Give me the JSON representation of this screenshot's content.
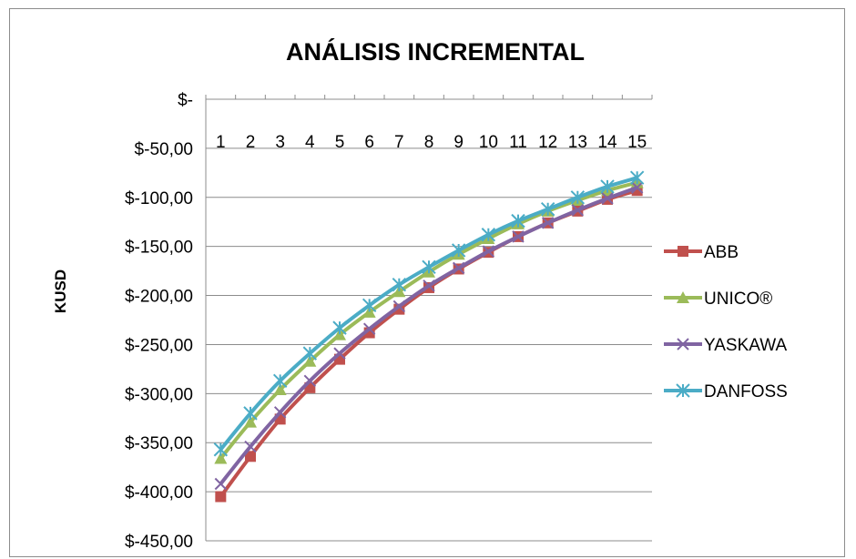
{
  "chart_data": {
    "type": "line",
    "title": "ANÁLISIS INCREMENTAL",
    "xlabel": "",
    "ylabel": "KUSD",
    "categories": [
      "1",
      "2",
      "3",
      "4",
      "5",
      "6",
      "7",
      "8",
      "9",
      "10",
      "11",
      "12",
      "13",
      "14",
      "15"
    ],
    "ylim": [
      -450,
      0
    ],
    "yticks": [
      0,
      -50,
      -100,
      -150,
      -200,
      -250,
      -300,
      -350,
      -400,
      -450
    ],
    "ytick_labels": [
      "$-",
      "$-50,00",
      "$-100,00",
      "$-150,00",
      "$-200,00",
      "$-250,00",
      "$-300,00",
      "$-350,00",
      "$-400,00",
      "$-450,00"
    ],
    "x_axis_position": "top",
    "grid": "horizontal",
    "legend": "right",
    "series": [
      {
        "name": "ABB",
        "color": "#c0504d",
        "marker": "square",
        "values": [
          -405,
          -364,
          -326,
          -294,
          -265,
          -238,
          -214,
          -192,
          -173,
          -156,
          -140,
          -126,
          -114,
          -102,
          -93
        ]
      },
      {
        "name": "UNICO®",
        "color": "#9bbb59",
        "marker": "triangle",
        "values": [
          -366,
          -329,
          -296,
          -267,
          -240,
          -217,
          -196,
          -176,
          -158,
          -142,
          -127,
          -114,
          -103,
          -93,
          -85
        ]
      },
      {
        "name": "YASKAWA",
        "color": "#8064a2",
        "marker": "x",
        "values": [
          -392,
          -354,
          -319,
          -287,
          -259,
          -234,
          -211,
          -190,
          -172,
          -155,
          -140,
          -126,
          -113,
          -101,
          -90
        ]
      },
      {
        "name": "DANFOSS",
        "color": "#4bacc6",
        "marker": "star",
        "values": [
          -357,
          -320,
          -287,
          -259,
          -233,
          -210,
          -189,
          -171,
          -154,
          -138,
          -124,
          -112,
          -100,
          -89,
          -80
        ]
      }
    ]
  }
}
